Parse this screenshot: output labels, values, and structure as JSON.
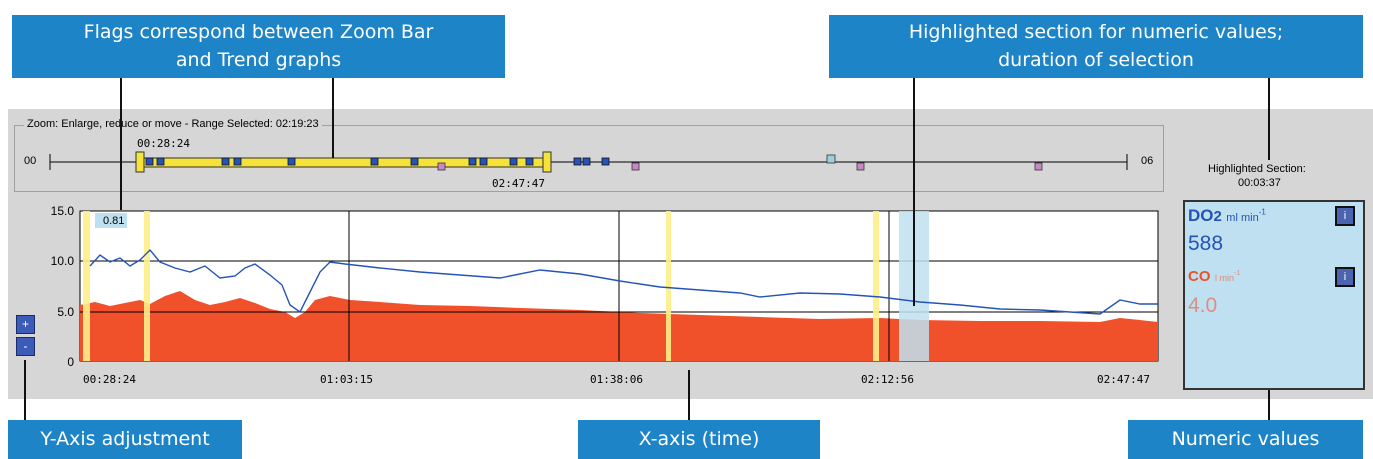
{
  "callouts": {
    "flags": {
      "line1": "Flags correspond between Zoom Bar",
      "line2": "and Trend graphs"
    },
    "highlight": {
      "line1": "Highlighted section for numeric values;",
      "line2": "duration of selection"
    },
    "yaxis": "Y-Axis adjustment",
    "xaxis": "X-axis (time)",
    "numeric": "Numeric values"
  },
  "zoom": {
    "legend": "Zoom: Enlarge, reduce or move - Range Selected: 02:19:23",
    "left_end": "00",
    "right_end": "06",
    "range_start": "00:28:24",
    "range_end": "02:47:47"
  },
  "highlight_section": {
    "label": "Highlighted Section:",
    "duration": "00:03:37"
  },
  "trend": {
    "cursor_value": "0.81",
    "y_ticks": [
      "15.0",
      "10.0",
      "5.0",
      "0"
    ],
    "x_ticks": [
      "00:28:24",
      "01:03:15",
      "01:38:06",
      "02:12:56",
      "02:47:47"
    ],
    "buttons": {
      "plus": "+",
      "minus": "-"
    }
  },
  "numeric": {
    "do2_name": "DO",
    "do2_sub": "2",
    "do2_unit": "ml min",
    "do2_unit_sup": "-1",
    "do2_value": "588",
    "co_name": "CO",
    "co_unit": "l min",
    "co_unit_sup": "-1",
    "co_value": "4.0",
    "info_button": "i"
  },
  "colors": {
    "callout": "#1e84c8",
    "do2": "#2454b8",
    "co": "#f0502a",
    "flag": "#ffee88",
    "zoom_range": "#f5e23a",
    "highlight": "#bfe0f0"
  }
}
